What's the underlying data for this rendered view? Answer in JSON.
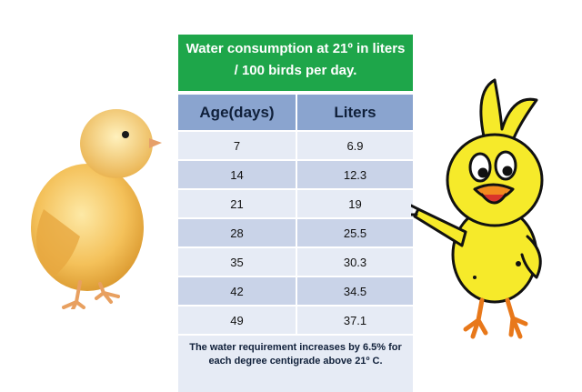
{
  "title": "Water consumption at 21º in liters / 100 birds per day.",
  "table": {
    "headers": [
      "Age(days)",
      "Liters"
    ],
    "rows": [
      [
        "7",
        "6.9"
      ],
      [
        "14",
        "12.3"
      ],
      [
        "21",
        "19"
      ],
      [
        "28",
        "25.5"
      ],
      [
        "35",
        "30.3"
      ],
      [
        "42",
        "34.5"
      ],
      [
        "49",
        "37.1"
      ]
    ]
  },
  "note": "The water requirement increases by 6.5% for each degree centigrade above 21º C.",
  "colors": {
    "title_bg": "#1ea64a",
    "header_bg": "#8aa4cf",
    "row_light": "#e6ebf5",
    "row_dark": "#c9d3e8"
  },
  "chart_data": {
    "type": "table",
    "title": "Water consumption at 21º in liters / 100 birds per day.",
    "columns": [
      "Age(days)",
      "Liters"
    ],
    "x": [
      7,
      14,
      21,
      28,
      35,
      42,
      49
    ],
    "y": [
      6.9,
      12.3,
      19,
      25.5,
      30.3,
      34.5,
      37.1
    ]
  }
}
